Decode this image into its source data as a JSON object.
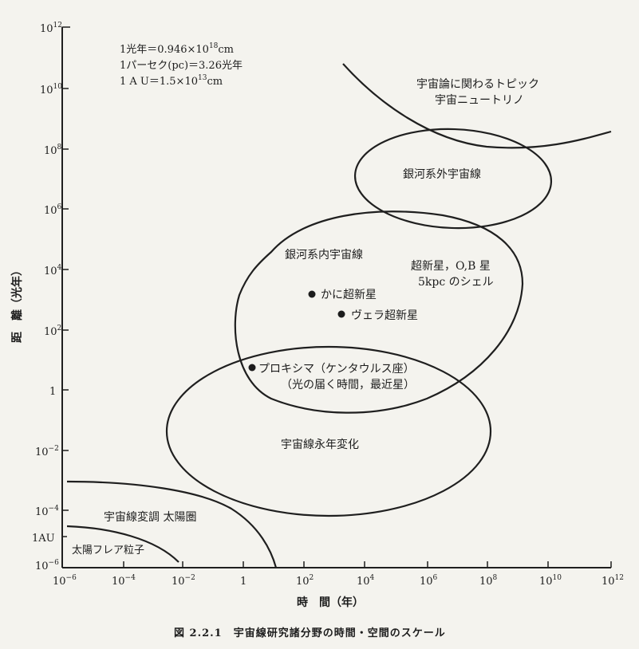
{
  "axes": {
    "x_title": "時　間（年）",
    "y_title": "距　離（光年）",
    "x_ticks": [
      {
        "base": "10",
        "exp": "−6"
      },
      {
        "base": "10",
        "exp": "−4"
      },
      {
        "base": "10",
        "exp": "−2"
      },
      {
        "base": "1",
        "exp": ""
      },
      {
        "base": "10",
        "exp": "2"
      },
      {
        "base": "10",
        "exp": "4"
      },
      {
        "base": "10",
        "exp": "6"
      },
      {
        "base": "10",
        "exp": "8"
      },
      {
        "base": "10",
        "exp": "10"
      },
      {
        "base": "10",
        "exp": "12"
      }
    ],
    "y_ticks": [
      {
        "base": "10",
        "exp": "12"
      },
      {
        "base": "10",
        "exp": "10"
      },
      {
        "base": "10",
        "exp": "8"
      },
      {
        "base": "10",
        "exp": "6"
      },
      {
        "base": "10",
        "exp": "4"
      },
      {
        "base": "10",
        "exp": "2"
      },
      {
        "base": "1",
        "exp": ""
      },
      {
        "base": "10",
        "exp": "−2"
      },
      {
        "base": "10",
        "exp": "−4"
      },
      {
        "base": "1AU",
        "exp": ""
      },
      {
        "base": "10",
        "exp": "−6"
      }
    ]
  },
  "notes": {
    "line1_a": "1光年＝0.946×10",
    "line1_sup": "18",
    "line1_b": "cm",
    "line2": "1パーセク(pc)＝3.26光年",
    "line3_a": "1 A U＝1.5×10",
    "line3_sup": "13",
    "line3_b": "cm"
  },
  "regions": {
    "cosmology_1": "宇宙論に関わるトピック",
    "cosmology_2": "宇宙ニュートリノ",
    "extragalactic": "銀河系外宇宙線",
    "galactic": "銀河系内宇宙線",
    "supernova_1": "超新星，O,B 星",
    "supernova_2": "5kpc のシェル",
    "longterm": "宇宙線永年変化",
    "modulation": "宇宙線変調 太陽圏",
    "flare": "太陽フレア粒子"
  },
  "points": {
    "crab": "かに超新星",
    "vela": "ヴェラ超新星",
    "proxima_1": "プロキシマ（ケンタウルス座）",
    "proxima_2": "（光の届く時間，最近星）"
  },
  "caption": "図 2.2.1　宇宙線研究諸分野の時間・空間のスケール"
}
